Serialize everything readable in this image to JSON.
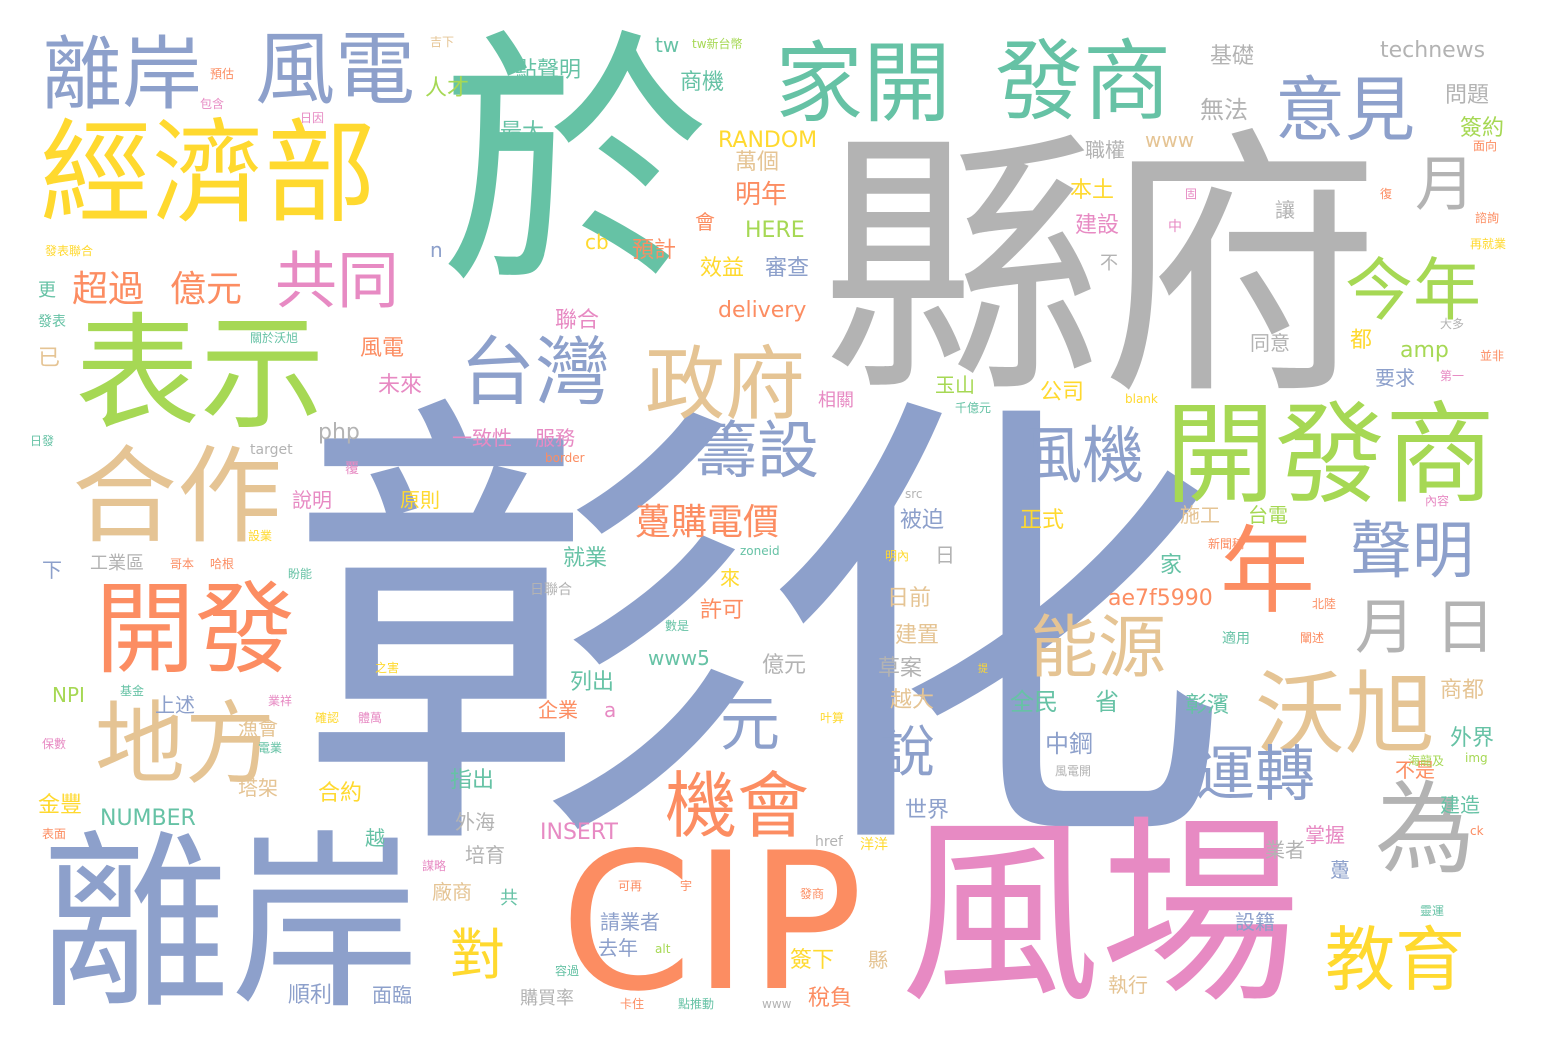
{
  "palette": {
    "green": "#66c2a5",
    "orange": "#fc8d62",
    "blue": "#8da0cb",
    "pink": "#e78ac3",
    "lime": "#a6d854",
    "yellow": "#ffd92f",
    "tan": "#e5c494",
    "gray": "#b3b3b3"
  },
  "words": [
    {
      "text": "彰化",
      "color": "blue"
    },
    {
      "text": "縣府",
      "color": "gray"
    },
    {
      "text": "於",
      "color": "green"
    },
    {
      "text": "離岸",
      "color": "blue"
    },
    {
      "text": "風場",
      "color": "pink"
    },
    {
      "text": "CIP",
      "color": "orange"
    },
    {
      "text": "經濟部",
      "color": "yellow"
    },
    {
      "text": "表示",
      "color": "lime"
    },
    {
      "text": "離岸",
      "color": "blue"
    },
    {
      "text": "風電",
      "color": "blue"
    },
    {
      "text": "家開",
      "color": "green"
    },
    {
      "text": "發商",
      "color": "green"
    },
    {
      "text": "意見",
      "color": "blue"
    },
    {
      "text": "開發商",
      "color": "lime"
    },
    {
      "text": "開發",
      "color": "orange"
    },
    {
      "text": "合作",
      "color": "tan"
    },
    {
      "text": "地方",
      "color": "tan"
    },
    {
      "text": "為",
      "color": "gray"
    },
    {
      "text": "年",
      "color": "orange"
    },
    {
      "text": "台灣",
      "color": "blue"
    },
    {
      "text": "政府",
      "color": "tan"
    },
    {
      "text": "沃旭",
      "color": "tan"
    },
    {
      "text": "教育",
      "color": "yellow"
    },
    {
      "text": "機會",
      "color": "orange"
    },
    {
      "text": "共同",
      "color": "pink"
    },
    {
      "text": "今年",
      "color": "lime"
    },
    {
      "text": "聲明",
      "color": "blue"
    },
    {
      "text": "籌設",
      "color": "blue"
    },
    {
      "text": "能源",
      "color": "tan"
    },
    {
      "text": "風機",
      "color": "blue"
    },
    {
      "text": "運轉",
      "color": "blue"
    },
    {
      "text": "月",
      "color": "gray"
    },
    {
      "text": "月",
      "color": "gray"
    },
    {
      "text": "日",
      "color": "gray"
    },
    {
      "text": "元",
      "color": "blue"
    },
    {
      "text": "說",
      "color": "blue"
    },
    {
      "text": "對",
      "color": "yellow"
    },
    {
      "text": "超過",
      "color": "orange"
    },
    {
      "text": "億元",
      "color": "orange"
    },
    {
      "text": "躉購電價",
      "color": "orange"
    },
    {
      "text": "technews",
      "color": "gray"
    },
    {
      "text": "基礎",
      "color": "gray"
    },
    {
      "text": "無法",
      "color": "gray"
    },
    {
      "text": "問題",
      "color": "gray"
    },
    {
      "text": "簽約",
      "color": "lime"
    },
    {
      "text": "職權",
      "color": "gray"
    },
    {
      "text": "www",
      "color": "tan"
    },
    {
      "text": "萬個",
      "color": "tan"
    },
    {
      "text": "明年",
      "color": "orange"
    },
    {
      "text": "RANDOM",
      "color": "yellow"
    },
    {
      "text": "最大",
      "color": "green"
    },
    {
      "text": "商機",
      "color": "green"
    },
    {
      "text": "點聲明",
      "color": "green"
    },
    {
      "text": "人才",
      "color": "lime"
    },
    {
      "text": "tw",
      "color": "green"
    },
    {
      "text": "本土",
      "color": "yellow"
    },
    {
      "text": "建設",
      "color": "pink"
    },
    {
      "text": "讓",
      "color": "gray"
    },
    {
      "text": "不",
      "color": "gray"
    },
    {
      "text": "都",
      "color": "yellow"
    },
    {
      "text": "同意",
      "color": "gray"
    },
    {
      "text": "要求",
      "color": "blue"
    },
    {
      "text": "amp",
      "color": "lime"
    },
    {
      "text": "公司",
      "color": "yellow"
    },
    {
      "text": "玉山",
      "color": "lime"
    },
    {
      "text": "審查",
      "color": "blue"
    },
    {
      "text": "HERE",
      "color": "lime"
    },
    {
      "text": "效益",
      "color": "yellow"
    },
    {
      "text": "預計",
      "color": "orange"
    },
    {
      "text": "會",
      "color": "orange"
    },
    {
      "text": "cb",
      "color": "yellow"
    },
    {
      "text": "n",
      "color": "blue"
    },
    {
      "text": "delivery",
      "color": "orange"
    },
    {
      "text": "聯合",
      "color": "pink"
    },
    {
      "text": "風電",
      "color": "orange"
    },
    {
      "text": "未來",
      "color": "pink"
    },
    {
      "text": "已",
      "color": "tan"
    },
    {
      "text": "更",
      "color": "green"
    },
    {
      "text": "php",
      "color": "gray"
    },
    {
      "text": "一致性",
      "color": "pink"
    },
    {
      "text": "服務",
      "color": "pink"
    },
    {
      "text": "相關",
      "color": "pink"
    },
    {
      "text": "施工",
      "color": "tan"
    },
    {
      "text": "台電",
      "color": "lime"
    },
    {
      "text": "被迫",
      "color": "blue"
    },
    {
      "text": "正式",
      "color": "yellow"
    },
    {
      "text": "說明",
      "color": "pink"
    },
    {
      "text": "原則",
      "color": "yellow"
    },
    {
      "text": "就業",
      "color": "green"
    },
    {
      "text": "日前",
      "color": "tan"
    },
    {
      "text": "日",
      "color": "gray"
    },
    {
      "text": "家",
      "color": "green"
    },
    {
      "text": "來",
      "color": "yellow"
    },
    {
      "text": "許可",
      "color": "orange"
    },
    {
      "text": "ae7f5990",
      "color": "orange"
    },
    {
      "text": "建置",
      "color": "tan"
    },
    {
      "text": "www5",
      "color": "green"
    },
    {
      "text": "億元",
      "color": "gray"
    },
    {
      "text": "草案",
      "color": "gray"
    },
    {
      "text": "列出",
      "color": "green"
    },
    {
      "text": "越大",
      "color": "tan"
    },
    {
      "text": "全民",
      "color": "green"
    },
    {
      "text": "省",
      "color": "green"
    },
    {
      "text": "彰濱",
      "color": "green"
    },
    {
      "text": "商都",
      "color": "tan"
    },
    {
      "text": "中鋼",
      "color": "blue"
    },
    {
      "text": "企業",
      "color": "orange"
    },
    {
      "text": "a",
      "color": "pink"
    },
    {
      "text": "上述",
      "color": "blue"
    },
    {
      "text": "漁會",
      "color": "tan"
    },
    {
      "text": "NPI",
      "color": "lime"
    },
    {
      "text": "工業區",
      "color": "gray"
    },
    {
      "text": "下",
      "color": "blue"
    },
    {
      "text": "指出",
      "color": "green"
    },
    {
      "text": "合約",
      "color": "yellow"
    },
    {
      "text": "塔架",
      "color": "tan"
    },
    {
      "text": "世界",
      "color": "blue"
    },
    {
      "text": "外海",
      "color": "gray"
    },
    {
      "text": "外界",
      "color": "green"
    },
    {
      "text": "不是",
      "color": "orange"
    },
    {
      "text": "建造",
      "color": "green"
    },
    {
      "text": "掌握",
      "color": "pink"
    },
    {
      "text": "業者",
      "color": "gray"
    },
    {
      "text": "金豐",
      "color": "yellow"
    },
    {
      "text": "NUMBER",
      "color": "green"
    },
    {
      "text": "INSERT",
      "color": "pink"
    },
    {
      "text": "越",
      "color": "green"
    },
    {
      "text": "培育",
      "color": "gray"
    },
    {
      "text": "廠商",
      "color": "tan"
    },
    {
      "text": "共",
      "color": "green"
    },
    {
      "text": "躉",
      "color": "blue"
    },
    {
      "text": "設籍",
      "color": "blue"
    },
    {
      "text": "請業者",
      "color": "blue"
    },
    {
      "text": "去年",
      "color": "blue"
    },
    {
      "text": "簽下",
      "color": "yellow"
    },
    {
      "text": "縣",
      "color": "tan"
    },
    {
      "text": "執行",
      "color": "tan"
    },
    {
      "text": "順利",
      "color": "blue"
    },
    {
      "text": "面臨",
      "color": "blue"
    },
    {
      "text": "購買率",
      "color": "gray"
    },
    {
      "text": "稅負",
      "color": "orange"
    },
    {
      "text": "href",
      "color": "gray"
    },
    {
      "text": "洋洋",
      "color": "yellow"
    },
    {
      "text": "日聯合",
      "color": "gray"
    },
    {
      "text": "tw新台幣",
      "color": "lime"
    },
    {
      "text": "吉下",
      "color": "tan"
    },
    {
      "text": "包含",
      "color": "pink"
    },
    {
      "text": "預估",
      "color": "orange"
    },
    {
      "text": "日因",
      "color": "pink"
    },
    {
      "text": "發表聯合",
      "color": "yellow"
    },
    {
      "text": "發表",
      "color": "green"
    },
    {
      "text": "關於沃旭",
      "color": "green"
    },
    {
      "text": "日發",
      "color": "green"
    },
    {
      "text": "target",
      "color": "gray"
    },
    {
      "text": "覆",
      "color": "pink"
    },
    {
      "text": "border",
      "color": "orange"
    },
    {
      "text": "blank",
      "color": "yellow"
    },
    {
      "text": "千億元",
      "color": "green"
    },
    {
      "text": "src",
      "color": "gray"
    },
    {
      "text": "zoneid",
      "color": "green"
    },
    {
      "text": "內容",
      "color": "pink"
    },
    {
      "text": "新聞稿",
      "color": "orange"
    },
    {
      "text": "固",
      "color": "pink"
    },
    {
      "text": "中",
      "color": "pink"
    },
    {
      "text": "復",
      "color": "orange"
    },
    {
      "text": "面向",
      "color": "orange"
    },
    {
      "text": "諮詢",
      "color": "orange"
    },
    {
      "text": "再就業",
      "color": "yellow"
    },
    {
      "text": "大多",
      "color": "gray"
    },
    {
      "text": "並非",
      "color": "orange"
    },
    {
      "text": "第一",
      "color": "pink"
    },
    {
      "text": "設業",
      "color": "yellow"
    },
    {
      "text": "哥本",
      "color": "orange"
    },
    {
      "text": "哈根",
      "color": "orange"
    },
    {
      "text": "盼能",
      "color": "green"
    },
    {
      "text": "明內",
      "color": "yellow"
    },
    {
      "text": "數是",
      "color": "green"
    },
    {
      "text": "之害",
      "color": "yellow"
    },
    {
      "text": "基金",
      "color": "green"
    },
    {
      "text": "業祥",
      "color": "pink"
    },
    {
      "text": "確認",
      "color": "yellow"
    },
    {
      "text": "體萬",
      "color": "pink"
    },
    {
      "text": "叶算",
      "color": "yellow"
    },
    {
      "text": "保數",
      "color": "pink"
    },
    {
      "text": "電業",
      "color": "green"
    },
    {
      "text": "表面",
      "color": "orange"
    },
    {
      "text": "北陸",
      "color": "orange"
    },
    {
      "text": "適用",
      "color": "green"
    },
    {
      "text": "闡述",
      "color": "orange"
    },
    {
      "text": "提",
      "color": "yellow"
    },
    {
      "text": "海龍及",
      "color": "lime"
    },
    {
      "text": "風電開",
      "color": "gray"
    },
    {
      "text": "img",
      "color": "lime"
    },
    {
      "text": "ck",
      "color": "orange"
    },
    {
      "text": "靈運",
      "color": "green"
    },
    {
      "text": "可再",
      "color": "orange"
    },
    {
      "text": "宇",
      "color": "orange"
    },
    {
      "text": "發商",
      "color": "orange"
    },
    {
      "text": "容過",
      "color": "green"
    },
    {
      "text": "alt",
      "color": "lime"
    },
    {
      "text": "卡住",
      "color": "orange"
    },
    {
      "text": "點推動",
      "color": "green"
    },
    {
      "text": "www",
      "color": "gray"
    },
    {
      "text": "謀略",
      "color": "pink"
    }
  ]
}
